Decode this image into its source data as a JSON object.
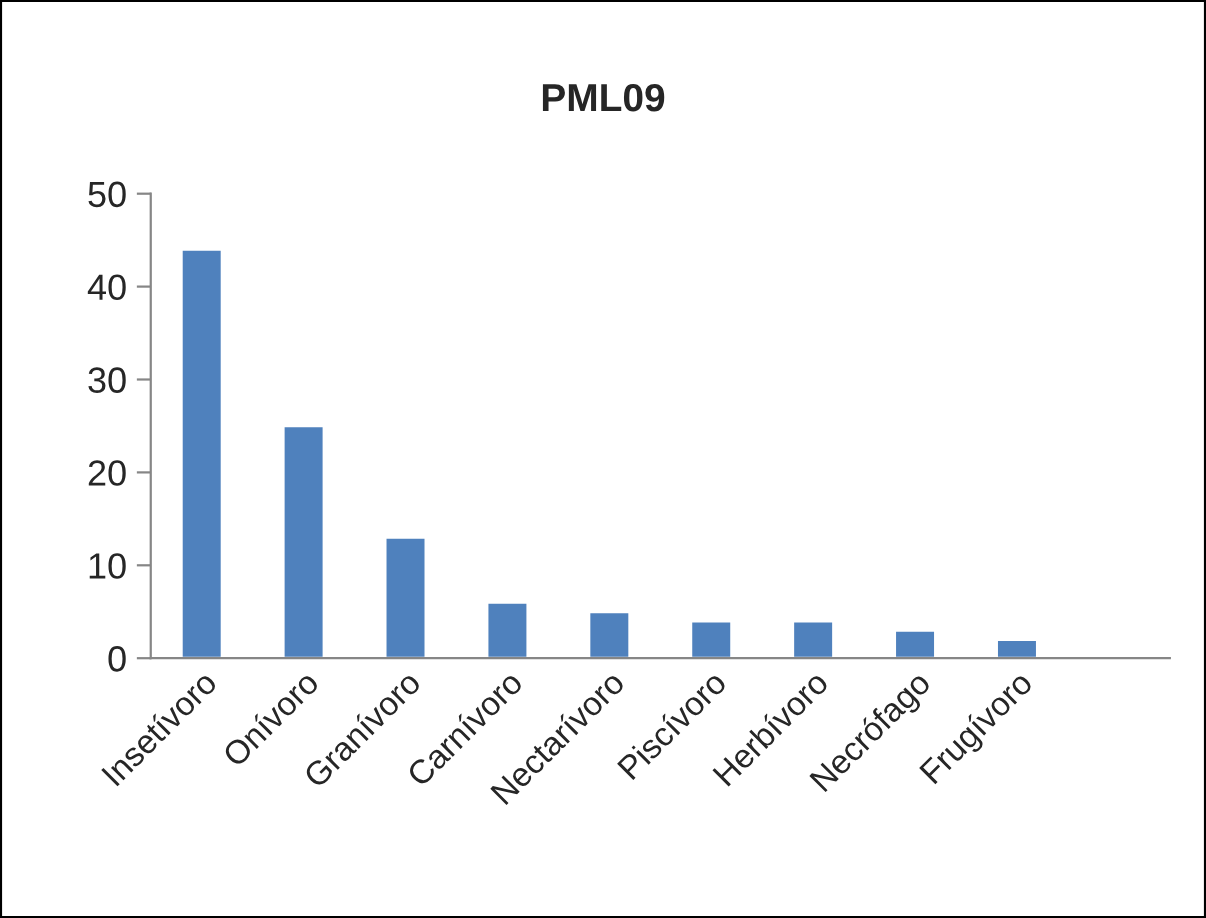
{
  "chart_data": {
    "type": "bar",
    "title": "PML09",
    "categories": [
      "Insetívoro",
      "Onívoro",
      "Granívoro",
      "Carnívoro",
      "Nectarívoro",
      "Piscívoro",
      "Herbívoro",
      "Necrófago",
      "Frugívoro",
      null
    ],
    "values": [
      44,
      25,
      13,
      6,
      5,
      4,
      4,
      3,
      2,
      null
    ],
    "color": "#4f81bd",
    "ylim": [
      0,
      50
    ],
    "yticks": [
      0,
      10,
      20,
      30,
      40,
      50
    ],
    "grid": false,
    "legend": false
  }
}
